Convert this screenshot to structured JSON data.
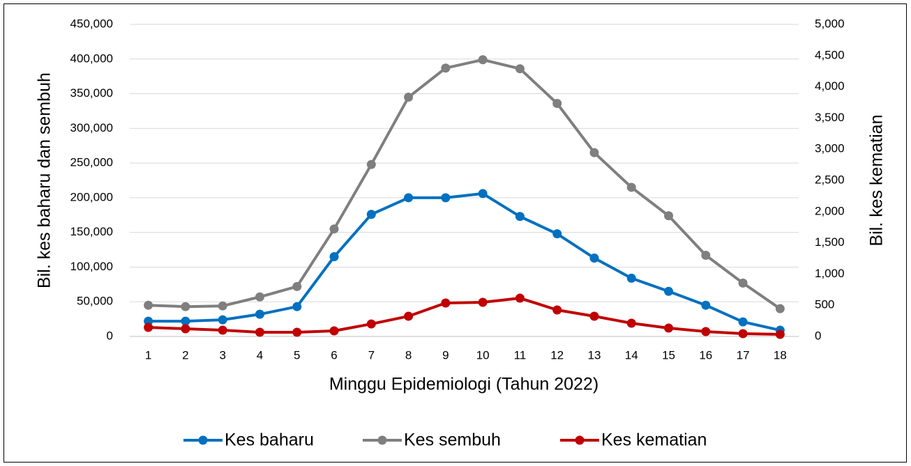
{
  "chart_data": {
    "type": "line",
    "x_label": "Minggu Epidemiologi (Tahun 2022)",
    "y_label": "Bil. kes baharu dan sembuh",
    "y2_label": "Bil. kes kematian",
    "categories": [
      "1",
      "2",
      "3",
      "4",
      "5",
      "6",
      "7",
      "8",
      "9",
      "10",
      "11",
      "12",
      "13",
      "14",
      "15",
      "16",
      "17",
      "18"
    ],
    "series": [
      {
        "name": "Kes baharu",
        "color": "#0070c0",
        "values": [
          22000,
          22000,
          24000,
          32000,
          43000,
          115000,
          176000,
          200000,
          200000,
          206000,
          173000,
          148000,
          113000,
          84000,
          65000,
          45000,
          21000,
          9000
        ]
      },
      {
        "name": "Kes sembuh",
        "color": "#7f7f7f",
        "values": [
          45000,
          43000,
          44000,
          57000,
          72000,
          155000,
          248000,
          345000,
          387000,
          399000,
          386000,
          336000,
          265000,
          215000,
          174000,
          117000,
          77000,
          40000
        ]
      },
      {
        "name": "Kes kematian",
        "color": "#c00000",
        "axis": "y2",
        "values": [
          145,
          123,
          100,
          67,
          67,
          89,
          200,
          324,
          536,
          547,
          614,
          424,
          324,
          212,
          134,
          78,
          45,
          33
        ]
      }
    ],
    "ylim": [
      0,
      450000
    ],
    "yticks": [
      0,
      {
        "value": 50000,
        "label": "50,000"
      },
      {
        "value": 100000,
        "label": "100,000"
      },
      {
        "value": 150000,
        "label": "150,000"
      },
      {
        "value": 200000,
        "label": "200,000"
      },
      {
        "value": 250000,
        "label": "250,000"
      },
      {
        "value": 300000,
        "label": "300,000"
      },
      {
        "value": 350000,
        "label": "350,000"
      },
      {
        "value": 400000,
        "label": "400,000"
      },
      {
        "value": 450000,
        "label": "450,000"
      }
    ],
    "y2lim": [
      0,
      5000
    ],
    "y2ticks": [
      0,
      500,
      {
        "value": 1000,
        "label": "1,000"
      },
      {
        "value": 1500,
        "label": "1,500"
      },
      {
        "value": 2000,
        "label": "2,000"
      },
      {
        "value": 2500,
        "label": "2,500"
      },
      {
        "value": 3000,
        "label": "3,000"
      },
      {
        "value": 3500,
        "label": "3,500"
      },
      {
        "value": 4000,
        "label": "4,000"
      },
      {
        "value": 4500,
        "label": "4,500"
      },
      {
        "value": 5000,
        "label": "5,000"
      }
    ],
    "grid": true,
    "legend": "bottom"
  }
}
